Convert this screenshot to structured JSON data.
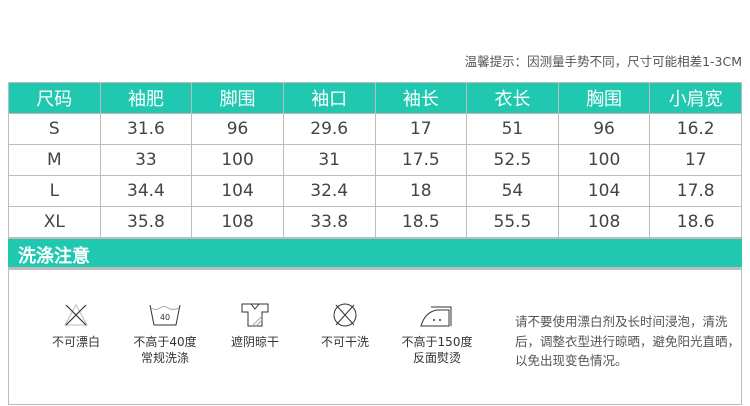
{
  "tip": "温馨提示：因测量手势不同，尺寸可能相差1-3CM",
  "table": {
    "headers": [
      "尺码",
      "袖肥",
      "脚围",
      "袖口",
      "袖长",
      "衣长",
      "胸围",
      "小肩宽"
    ],
    "rows": [
      [
        "S",
        "31.6",
        "96",
        "29.6",
        "17",
        "51",
        "96",
        "16.2"
      ],
      [
        "M",
        "33",
        "100",
        "31",
        "17.5",
        "52.5",
        "100",
        "17"
      ],
      [
        "L",
        "34.4",
        "104",
        "32.4",
        "18",
        "54",
        "104",
        "17.8"
      ],
      [
        "XL",
        "35.8",
        "108",
        "33.8",
        "18.5",
        "55.5",
        "108",
        "18.6"
      ]
    ]
  },
  "care": {
    "title": "洗涤注意",
    "items": [
      {
        "icon": "no-bleach-icon",
        "line1": "不可漂白",
        "line2": ""
      },
      {
        "icon": "wash-40-icon",
        "line1": "不高于40度",
        "line2": "常规洗涤",
        "temp": "40"
      },
      {
        "icon": "shade-dry-icon",
        "line1": "遮阴晾干",
        "line2": ""
      },
      {
        "icon": "no-dry-clean-icon",
        "line1": "不可干洗",
        "line2": ""
      },
      {
        "icon": "iron-icon",
        "line1": "不高于150度",
        "line2": "反面熨烫"
      }
    ],
    "note": "请不要使用漂白剂及长时间浸泡，清洗后，调整衣型进行晾晒，避免阳光直晒，以免出现变色情况。"
  },
  "colors": {
    "accent": "#20c8b0",
    "border": "#bdbdbd"
  }
}
